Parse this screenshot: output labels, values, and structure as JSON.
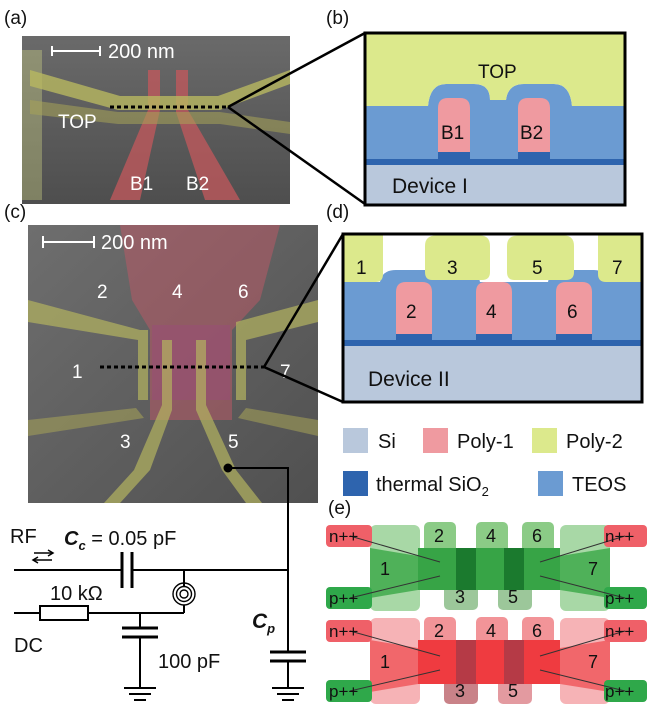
{
  "panel_labels": {
    "a": "(a)",
    "b": "(b)",
    "c": "(c)",
    "d": "(d)",
    "e": "(e)"
  },
  "panel_a": {
    "scale": "200 nm",
    "top": "TOP",
    "b1": "B1",
    "b2": "B2"
  },
  "panel_b": {
    "top": "TOP",
    "b1": "B1",
    "b2": "B2",
    "device": "Device I"
  },
  "panel_c": {
    "scale": "200 nm",
    "gates": [
      "1",
      "2",
      "3",
      "4",
      "5",
      "6",
      "7"
    ]
  },
  "panel_d": {
    "gates": [
      "1",
      "2",
      "3",
      "4",
      "5",
      "6",
      "7"
    ],
    "device": "Device II"
  },
  "legend": {
    "si": "Si",
    "poly1": "Poly-1",
    "poly2": "Poly-2",
    "thermal_prefix": "thermal SiO",
    "thermal_sub": "2",
    "teos": "TEOS"
  },
  "circuit": {
    "rf": "RF",
    "dc": "DC",
    "cc_symbol": "C",
    "cc_sub": "c",
    "cc_value": " = 0.05 pF",
    "resistor": "10 kΩ",
    "capacitor": "100 pF",
    "cp_symbol": "C",
    "cp_sub": "p"
  },
  "panel_e": {
    "n_label": "n++",
    "p_label": "p++",
    "gates": [
      "1",
      "2",
      "3",
      "4",
      "5",
      "6",
      "7"
    ]
  },
  "colors": {
    "si": "#b9c8dc",
    "poly1": "#ef9aa0",
    "poly2": "#dce98c",
    "thermal": "#2e64ae",
    "teos": "#6b9bd2",
    "green": "#2fa84a",
    "red": "#ef3b40",
    "sem": "#5f5f5f"
  }
}
